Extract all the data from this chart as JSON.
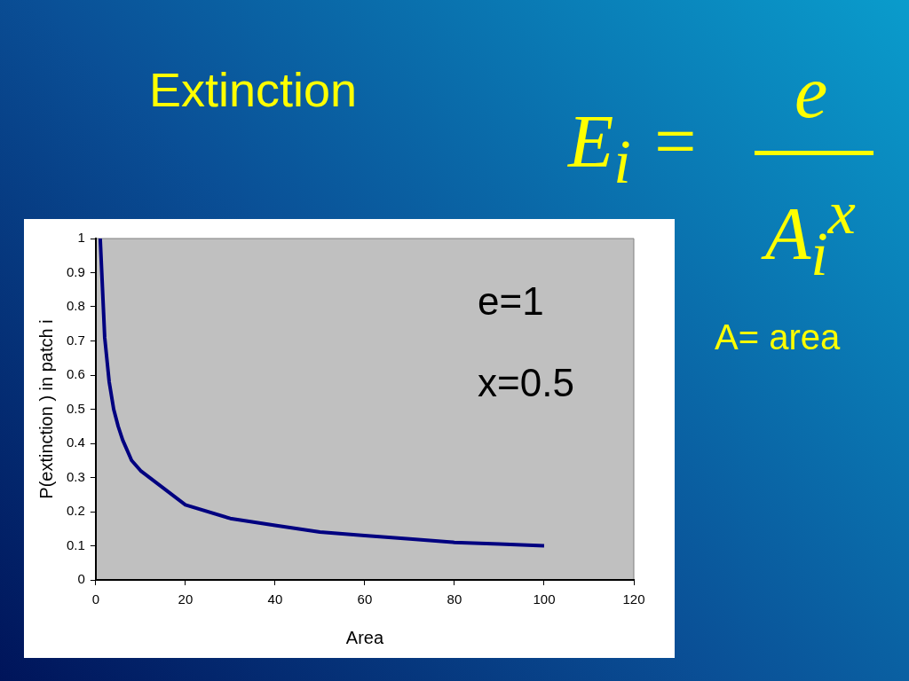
{
  "chart_data": {
    "type": "line",
    "title": "Extinction",
    "xlabel": "Area",
    "ylabel": "P(extinction ) in patch i",
    "x": [
      1,
      2,
      3,
      4,
      5,
      6,
      8,
      10,
      20,
      30,
      40,
      50,
      60,
      70,
      80,
      90,
      100
    ],
    "series": [
      {
        "color": "#000080",
        "values": [
          1.0,
          0.71,
          0.58,
          0.5,
          0.45,
          0.41,
          0.35,
          0.32,
          0.22,
          0.18,
          0.16,
          0.14,
          0.13,
          0.12,
          0.11,
          0.105,
          0.1
        ]
      }
    ],
    "xlim": [
      0,
      120
    ],
    "xticks": [
      0,
      20,
      40,
      60,
      80,
      100,
      120
    ],
    "ylim": [
      0,
      1
    ],
    "yticks": [
      0,
      0.1,
      0.2,
      0.3,
      0.4,
      0.5,
      0.6,
      0.7,
      0.8,
      0.9,
      1
    ],
    "grid": false,
    "legend": false,
    "marker": "none",
    "line_style": "solid",
    "annotations": [
      "e=1",
      "x=0.5",
      "E$_{i}$ =",
      "e",
      "A$_{i}$$^{x}$",
      "A= area"
    ]
  }
}
